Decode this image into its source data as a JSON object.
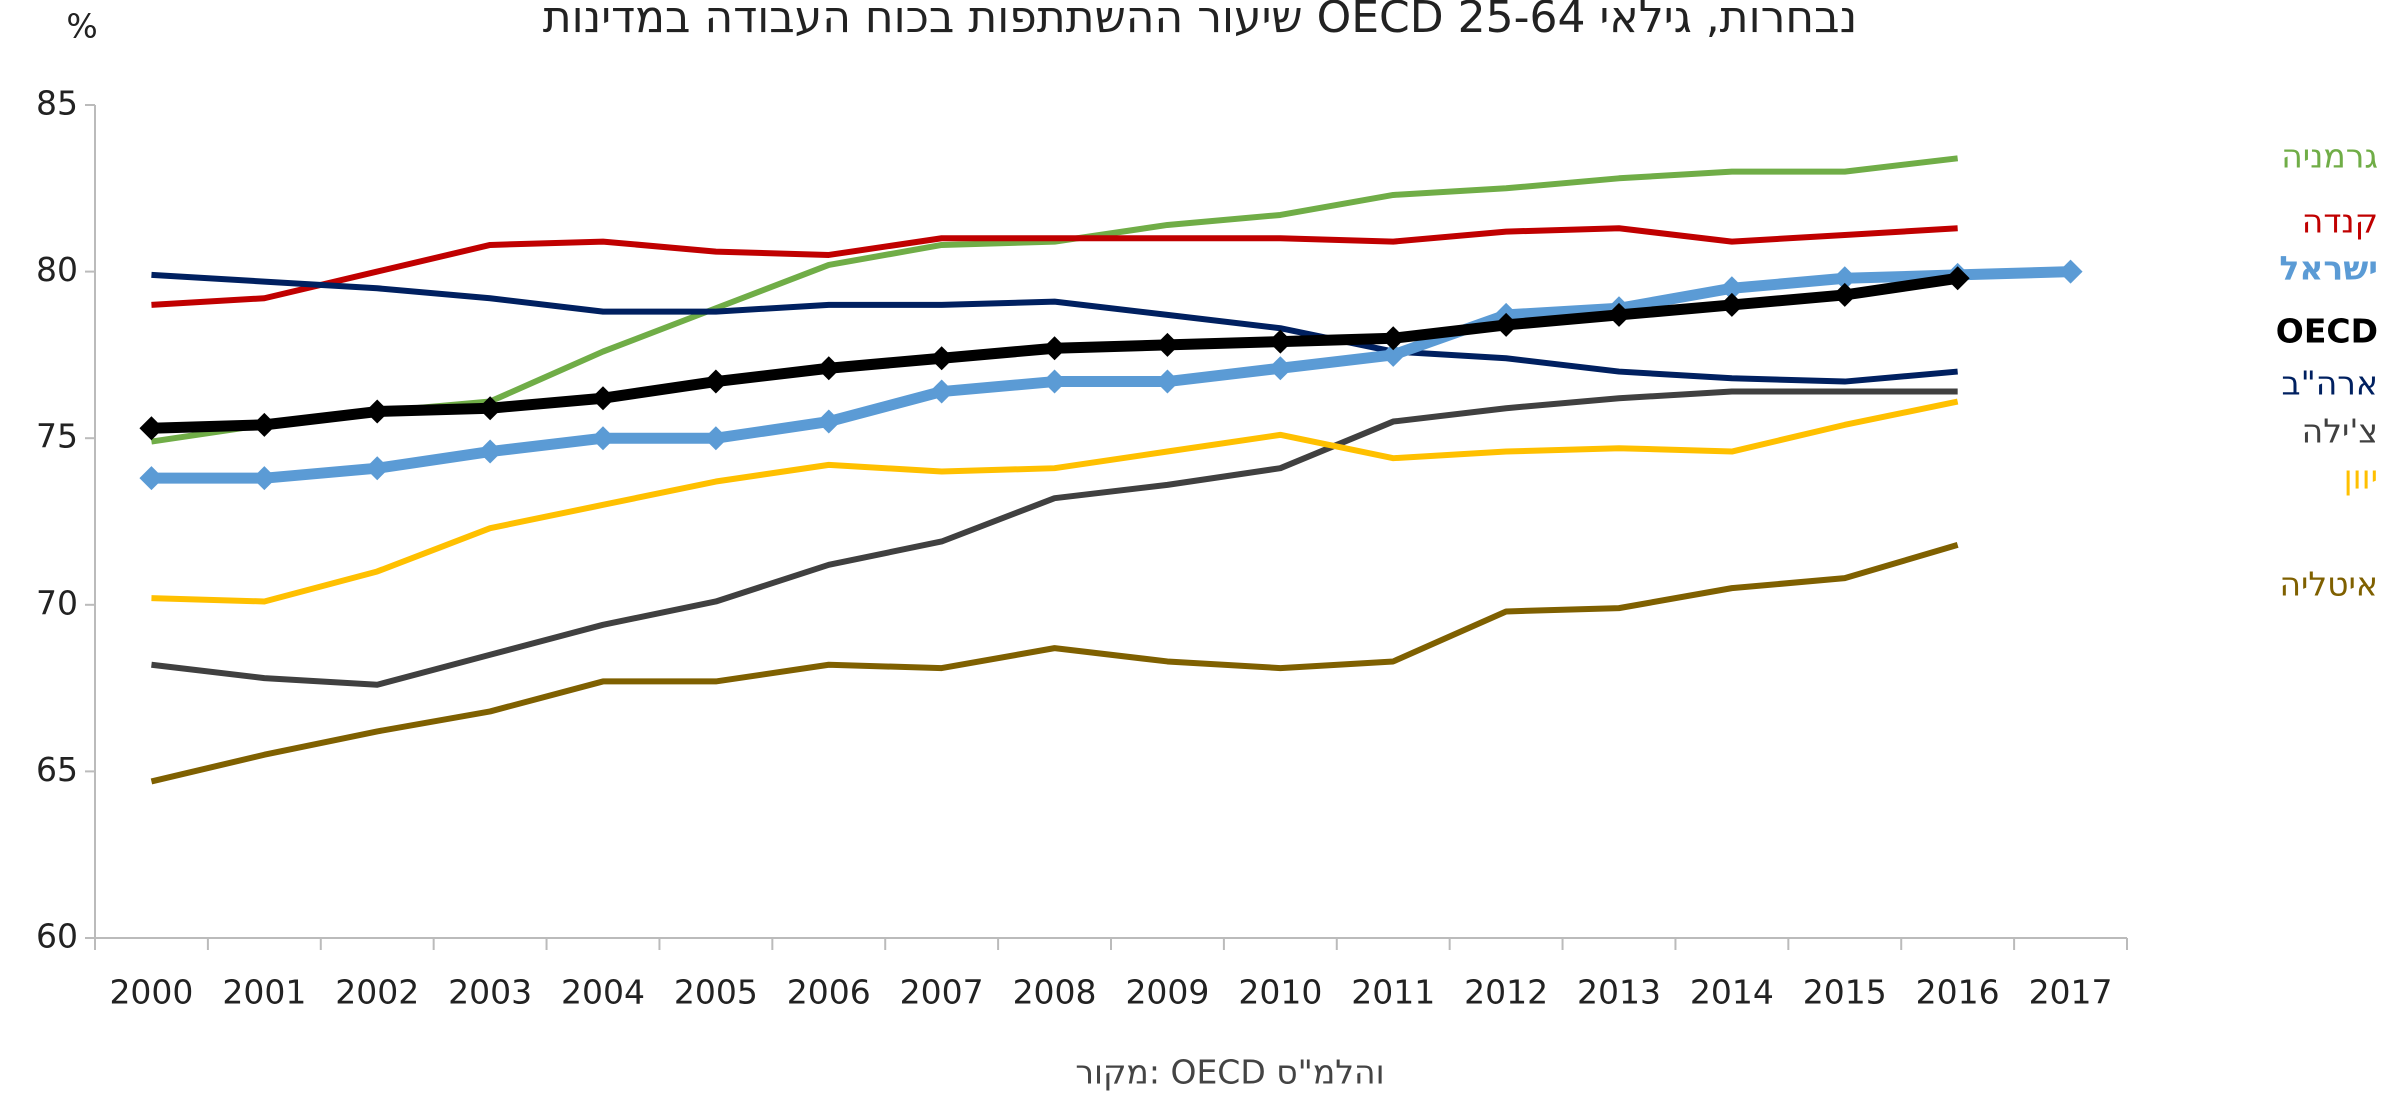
{
  "chart_data": {
    "type": "line",
    "title": "שיעור ההשתתפות בכוח העבודה במדינות OECD נבחרות, גילאי 25-64",
    "y_label": "%",
    "source": "מקור: OECD והלמ\"ס",
    "categories": [
      "2000",
      "2001",
      "2002",
      "2003",
      "2004",
      "2005",
      "2006",
      "2007",
      "2008",
      "2009",
      "2010",
      "2011",
      "2012",
      "2013",
      "2014",
      "2015",
      "2016",
      "2017"
    ],
    "ylim": [
      60,
      85
    ],
    "yticks": [
      60,
      65,
      70,
      75,
      80,
      85
    ],
    "series": [
      {
        "name": "גרמניה",
        "color": "#70ad47",
        "values": [
          74.9,
          75.4,
          75.8,
          76.1,
          77.6,
          78.9,
          80.2,
          80.8,
          80.9,
          81.4,
          81.7,
          82.3,
          82.5,
          82.8,
          83.0,
          83.0,
          83.4,
          null
        ]
      },
      {
        "name": "קנדה",
        "color": "#c00000",
        "values": [
          79.0,
          79.2,
          80.0,
          80.8,
          80.9,
          80.6,
          80.5,
          81.0,
          81.0,
          81.0,
          81.0,
          80.9,
          81.2,
          81.3,
          80.9,
          81.1,
          81.3,
          null
        ]
      },
      {
        "name": "ישראל",
        "color": "#5b9bd5",
        "marker": true,
        "values": [
          73.8,
          73.8,
          74.1,
          74.6,
          75.0,
          75.0,
          75.5,
          76.4,
          76.7,
          76.7,
          77.1,
          77.5,
          78.7,
          78.9,
          79.5,
          79.8,
          79.9,
          80.0
        ]
      },
      {
        "name": "OECD",
        "color": "#000000",
        "marker": true,
        "values": [
          75.3,
          75.4,
          75.8,
          75.9,
          76.2,
          76.7,
          77.1,
          77.4,
          77.7,
          77.8,
          77.9,
          78.0,
          78.4,
          78.7,
          79.0,
          79.3,
          79.8,
          null
        ]
      },
      {
        "name": "ארה\"ב",
        "color": "#002060",
        "values": [
          79.9,
          79.7,
          79.5,
          79.2,
          78.8,
          78.8,
          79.0,
          79.0,
          79.1,
          78.7,
          78.3,
          77.6,
          77.4,
          77.0,
          76.8,
          76.7,
          77.0,
          null
        ]
      },
      {
        "name": "צ'ילה",
        "color": "#404040",
        "values": [
          68.2,
          67.8,
          67.6,
          68.5,
          69.4,
          70.1,
          71.2,
          71.9,
          73.2,
          73.6,
          74.1,
          75.5,
          75.9,
          76.2,
          76.4,
          76.4,
          76.4,
          null
        ]
      },
      {
        "name": "יוון",
        "color": "#ffc000",
        "values": [
          70.2,
          70.1,
          71.0,
          72.3,
          73.0,
          73.7,
          74.2,
          74.0,
          74.1,
          74.6,
          75.1,
          74.4,
          74.6,
          74.7,
          74.6,
          75.4,
          76.1,
          null
        ]
      },
      {
        "name": "איטליה",
        "color": "#7f6000",
        "values": [
          64.7,
          65.5,
          66.2,
          66.8,
          67.7,
          67.7,
          68.2,
          68.1,
          68.7,
          68.3,
          68.1,
          68.3,
          69.8,
          69.9,
          70.5,
          70.8,
          71.8,
          null
        ]
      }
    ]
  }
}
